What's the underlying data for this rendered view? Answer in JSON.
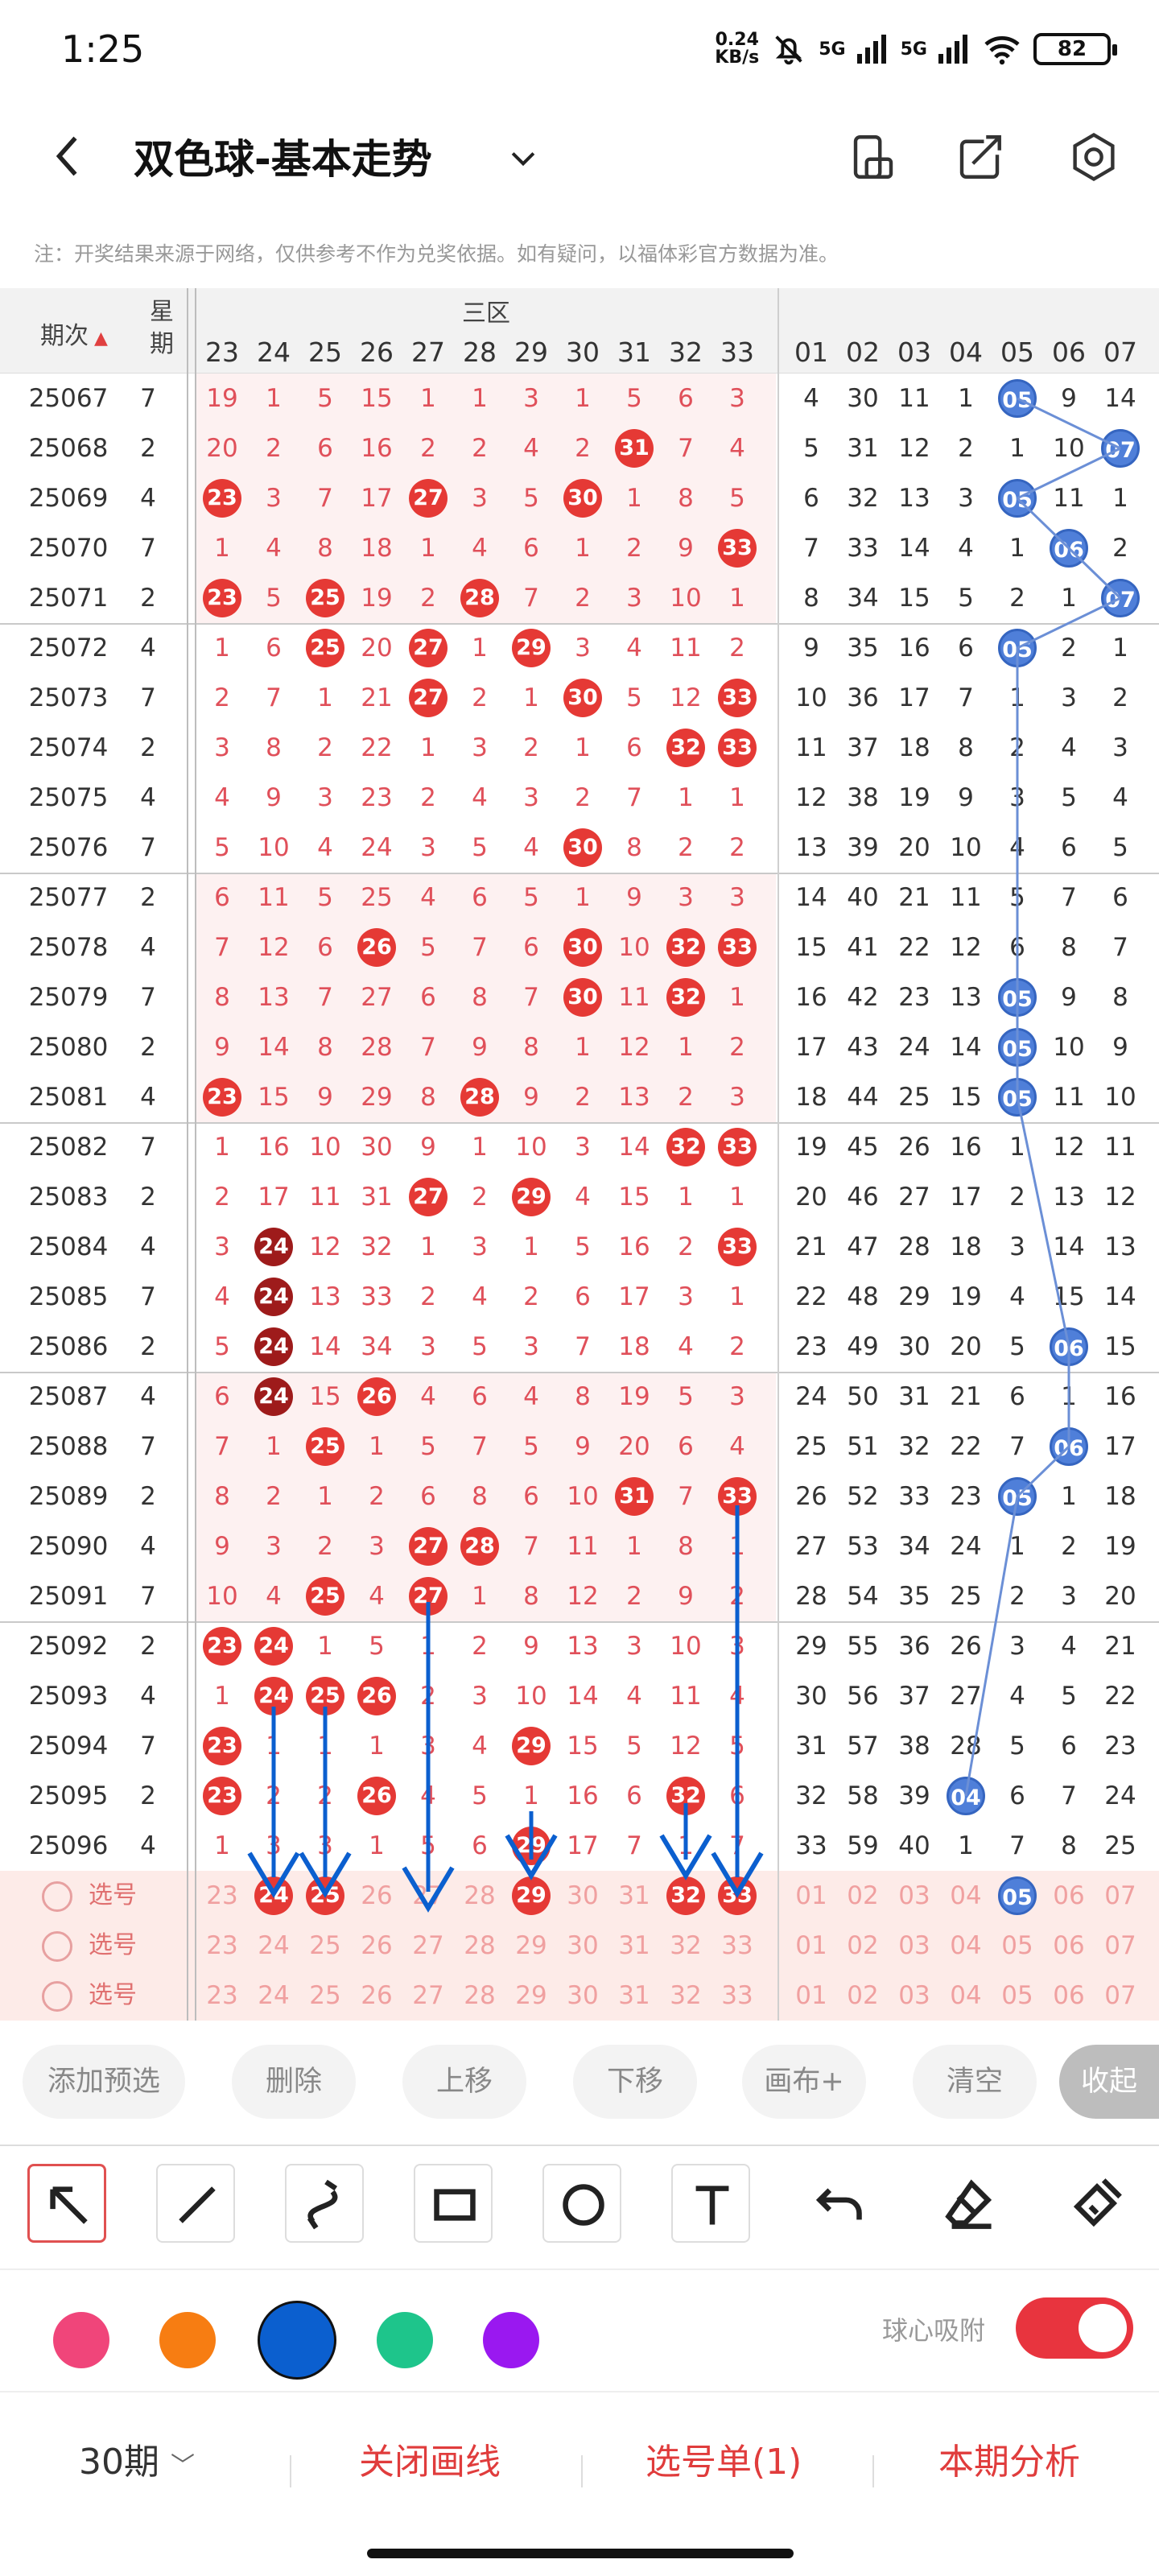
{
  "status": {
    "time": "1:25",
    "speed_top": "0.24",
    "speed_bottom": "KB/s",
    "signal1": "5G",
    "signal2": "5G",
    "battery": "82"
  },
  "header": {
    "title": "双色球-基本走势"
  },
  "note": "注：开奖结果来源于网络，仅供参考不作为兑奖依据。如有疑问，以福体彩官方数据为准。",
  "table_header": {
    "period": "期次",
    "week": "星期",
    "zone": "三区",
    "red_nums": [
      "23",
      "24",
      "25",
      "26",
      "27",
      "28",
      "29",
      "30",
      "31",
      "32",
      "33"
    ],
    "blue_nums": [
      "01",
      "02",
      "03",
      "04",
      "05",
      "06",
      "07"
    ]
  },
  "rows": [
    {
      "p": "25067",
      "w": "7",
      "r": [
        "19",
        "1",
        "5",
        "15",
        "1",
        "1",
        "3",
        "1",
        "5",
        "6",
        "3"
      ],
      "b": [
        "4",
        "30",
        "11",
        "1",
        "05",
        "9",
        "14"
      ]
    },
    {
      "p": "25068",
      "w": "2",
      "r": [
        "20",
        "2",
        "6",
        "16",
        "2",
        "2",
        "4",
        "2",
        "31",
        "7",
        "4"
      ],
      "b": [
        "5",
        "31",
        "12",
        "2",
        "1",
        "10",
        "07"
      ]
    },
    {
      "p": "25069",
      "w": "4",
      "r": [
        "23",
        "3",
        "7",
        "17",
        "27",
        "3",
        "5",
        "30",
        "1",
        "8",
        "5"
      ],
      "b": [
        "6",
        "32",
        "13",
        "3",
        "05",
        "11",
        "1"
      ]
    },
    {
      "p": "25070",
      "w": "7",
      "r": [
        "1",
        "4",
        "8",
        "18",
        "1",
        "4",
        "6",
        "1",
        "2",
        "9",
        "33"
      ],
      "b": [
        "7",
        "33",
        "14",
        "4",
        "1",
        "06",
        "2"
      ]
    },
    {
      "p": "25071",
      "w": "2",
      "r": [
        "23",
        "5",
        "25",
        "19",
        "2",
        "28",
        "7",
        "2",
        "3",
        "10",
        "1"
      ],
      "b": [
        "8",
        "34",
        "15",
        "5",
        "2",
        "1",
        "07"
      ]
    },
    {
      "p": "25072",
      "w": "4",
      "r": [
        "1",
        "6",
        "25",
        "20",
        "27",
        "1",
        "29",
        "3",
        "4",
        "11",
        "2"
      ],
      "b": [
        "9",
        "35",
        "16",
        "6",
        "05",
        "2",
        "1"
      ]
    },
    {
      "p": "25073",
      "w": "7",
      "r": [
        "2",
        "7",
        "1",
        "21",
        "27",
        "2",
        "1",
        "30",
        "5",
        "12",
        "33"
      ],
      "b": [
        "10",
        "36",
        "17",
        "7",
        "1",
        "3",
        "2"
      ]
    },
    {
      "p": "25074",
      "w": "2",
      "r": [
        "3",
        "8",
        "2",
        "22",
        "1",
        "3",
        "2",
        "1",
        "6",
        "32",
        "33"
      ],
      "b": [
        "11",
        "37",
        "18",
        "8",
        "2",
        "4",
        "3"
      ]
    },
    {
      "p": "25075",
      "w": "4",
      "r": [
        "4",
        "9",
        "3",
        "23",
        "2",
        "4",
        "3",
        "2",
        "7",
        "1",
        "1"
      ],
      "b": [
        "12",
        "38",
        "19",
        "9",
        "3",
        "5",
        "4"
      ]
    },
    {
      "p": "25076",
      "w": "7",
      "r": [
        "5",
        "10",
        "4",
        "24",
        "3",
        "5",
        "4",
        "30",
        "8",
        "2",
        "2"
      ],
      "b": [
        "13",
        "39",
        "20",
        "10",
        "4",
        "6",
        "5"
      ]
    },
    {
      "p": "25077",
      "w": "2",
      "r": [
        "6",
        "11",
        "5",
        "25",
        "4",
        "6",
        "5",
        "1",
        "9",
        "3",
        "3"
      ],
      "b": [
        "14",
        "40",
        "21",
        "11",
        "5",
        "7",
        "6"
      ]
    },
    {
      "p": "25078",
      "w": "4",
      "r": [
        "7",
        "12",
        "6",
        "26",
        "5",
        "7",
        "6",
        "30",
        "10",
        "32",
        "33"
      ],
      "b": [
        "15",
        "41",
        "22",
        "12",
        "6",
        "8",
        "7"
      ]
    },
    {
      "p": "25079",
      "w": "7",
      "r": [
        "8",
        "13",
        "7",
        "27",
        "6",
        "8",
        "7",
        "30",
        "11",
        "32",
        "1"
      ],
      "b": [
        "16",
        "42",
        "23",
        "13",
        "05",
        "9",
        "8"
      ]
    },
    {
      "p": "25080",
      "w": "2",
      "r": [
        "9",
        "14",
        "8",
        "28",
        "7",
        "9",
        "8",
        "1",
        "12",
        "1",
        "2"
      ],
      "b": [
        "17",
        "43",
        "24",
        "14",
        "05",
        "10",
        "9"
      ]
    },
    {
      "p": "25081",
      "w": "4",
      "r": [
        "23",
        "15",
        "9",
        "29",
        "8",
        "28",
        "9",
        "2",
        "13",
        "2",
        "3"
      ],
      "b": [
        "18",
        "44",
        "25",
        "15",
        "05",
        "11",
        "10"
      ]
    },
    {
      "p": "25082",
      "w": "7",
      "r": [
        "1",
        "16",
        "10",
        "30",
        "9",
        "1",
        "10",
        "3",
        "14",
        "32",
        "33"
      ],
      "b": [
        "19",
        "45",
        "26",
        "16",
        "1",
        "12",
        "11"
      ]
    },
    {
      "p": "25083",
      "w": "2",
      "r": [
        "2",
        "17",
        "11",
        "31",
        "27",
        "2",
        "29",
        "4",
        "15",
        "1",
        "1"
      ],
      "b": [
        "20",
        "46",
        "27",
        "17",
        "2",
        "13",
        "12"
      ]
    },
    {
      "p": "25084",
      "w": "4",
      "r": [
        "3",
        "24",
        "12",
        "32",
        "1",
        "3",
        "1",
        "5",
        "16",
        "2",
        "33"
      ],
      "b": [
        "21",
        "47",
        "28",
        "18",
        "3",
        "14",
        "13"
      ]
    },
    {
      "p": "25085",
      "w": "7",
      "r": [
        "4",
        "24",
        "13",
        "33",
        "2",
        "4",
        "2",
        "6",
        "17",
        "3",
        "1"
      ],
      "b": [
        "22",
        "48",
        "29",
        "19",
        "4",
        "15",
        "14"
      ]
    },
    {
      "p": "25086",
      "w": "2",
      "r": [
        "5",
        "24",
        "14",
        "34",
        "3",
        "5",
        "3",
        "7",
        "18",
        "4",
        "2"
      ],
      "b": [
        "23",
        "49",
        "30",
        "20",
        "5",
        "06",
        "15"
      ]
    },
    {
      "p": "25087",
      "w": "4",
      "r": [
        "6",
        "24",
        "15",
        "26",
        "4",
        "6",
        "4",
        "8",
        "19",
        "5",
        "3"
      ],
      "b": [
        "24",
        "50",
        "31",
        "21",
        "6",
        "1",
        "16"
      ]
    },
    {
      "p": "25088",
      "w": "7",
      "r": [
        "7",
        "1",
        "25",
        "1",
        "5",
        "7",
        "5",
        "9",
        "20",
        "6",
        "4"
      ],
      "b": [
        "25",
        "51",
        "32",
        "22",
        "7",
        "06",
        "17"
      ]
    },
    {
      "p": "25089",
      "w": "2",
      "r": [
        "8",
        "2",
        "1",
        "2",
        "6",
        "8",
        "6",
        "10",
        "31",
        "7",
        "33"
      ],
      "b": [
        "26",
        "52",
        "33",
        "23",
        "05",
        "1",
        "18"
      ]
    },
    {
      "p": "25090",
      "w": "4",
      "r": [
        "9",
        "3",
        "2",
        "3",
        "27",
        "28",
        "7",
        "11",
        "1",
        "8",
        "1"
      ],
      "b": [
        "27",
        "53",
        "34",
        "24",
        "1",
        "2",
        "19"
      ]
    },
    {
      "p": "25091",
      "w": "7",
      "r": [
        "10",
        "4",
        "25",
        "4",
        "27",
        "1",
        "8",
        "12",
        "2",
        "9",
        "2"
      ],
      "b": [
        "28",
        "54",
        "35",
        "25",
        "2",
        "3",
        "20"
      ]
    },
    {
      "p": "25092",
      "w": "2",
      "r": [
        "23",
        "24",
        "1",
        "5",
        "1",
        "2",
        "9",
        "13",
        "3",
        "10",
        "3"
      ],
      "b": [
        "29",
        "55",
        "36",
        "26",
        "3",
        "4",
        "21"
      ]
    },
    {
      "p": "25093",
      "w": "4",
      "r": [
        "1",
        "24",
        "25",
        "26",
        "2",
        "3",
        "10",
        "14",
        "4",
        "11",
        "4"
      ],
      "b": [
        "30",
        "56",
        "37",
        "27",
        "4",
        "5",
        "22"
      ]
    },
    {
      "p": "25094",
      "w": "7",
      "r": [
        "23",
        "1",
        "1",
        "1",
        "3",
        "4",
        "29",
        "15",
        "5",
        "12",
        "5"
      ],
      "b": [
        "31",
        "57",
        "38",
        "28",
        "5",
        "6",
        "23"
      ]
    },
    {
      "p": "25095",
      "w": "2",
      "r": [
        "23",
        "2",
        "2",
        "26",
        "4",
        "5",
        "1",
        "16",
        "6",
        "32",
        "6"
      ],
      "b": [
        "32",
        "58",
        "39",
        "04",
        "6",
        "7",
        "24"
      ]
    },
    {
      "p": "25096",
      "w": "4",
      "r": [
        "1",
        "3",
        "3",
        "1",
        "5",
        "6",
        "29",
        "17",
        "7",
        "1",
        "7"
      ],
      "b": [
        "33",
        "59",
        "40",
        "1",
        "7",
        "8",
        "25"
      ]
    }
  ],
  "pick_label": "选号",
  "pick_row1_red": [
    "23",
    "24",
    "25",
    "26",
    "27",
    "28",
    "29",
    "30",
    "31",
    "32",
    "33"
  ],
  "pick_row1_blue": [
    "01",
    "02",
    "03",
    "04",
    "05",
    "06",
    "07"
  ],
  "actions": {
    "add": "添加预选",
    "delete": "删除",
    "up": "上移",
    "down": "下移",
    "canvas": "画布+",
    "clear": "清空",
    "collapse": "收起"
  },
  "snap_label": "球心吸附",
  "colors": {
    "pink": "#f0457a",
    "orange": "#f77d12",
    "blue": "#0b5fcf",
    "green": "#1ec58b",
    "purple": "#9a18f0"
  },
  "bottom": {
    "periods": "30期",
    "close_draw": "关闭画线",
    "pick_list": "选号单(1)",
    "analysis": "本期分析"
  }
}
